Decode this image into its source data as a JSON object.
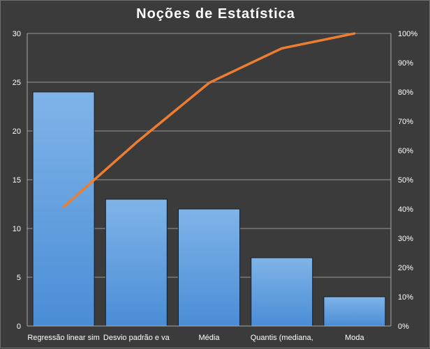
{
  "chart_data": {
    "type": "bar",
    "title": "Noções de Estatística",
    "categories": [
      "Regressão linear sim",
      "Desvio padrão e va",
      "Média",
      "Quantis (mediana,",
      "Moda"
    ],
    "series": [
      {
        "type": "bar",
        "values": [
          24,
          13,
          12,
          7,
          3
        ],
        "axis": "left"
      },
      {
        "type": "line",
        "values": [
          40.7,
          62.7,
          83.1,
          94.9,
          100.0
        ],
        "axis": "right",
        "unit": "%"
      }
    ],
    "ylim": [
      0,
      30
    ],
    "y_ticks": [
      "0",
      "5",
      "10",
      "15",
      "20",
      "25",
      "30"
    ],
    "y2lim": [
      0,
      100
    ],
    "y2_ticks": [
      "0%",
      "10%",
      "20%",
      "30%",
      "40%",
      "50%",
      "60%",
      "70%",
      "80%",
      "90%",
      "100%"
    ],
    "grid": true,
    "colors": {
      "bar": "#5a9be0",
      "bar_light": "#7fb4e8",
      "line": "#ed7d31",
      "grid": "#9a9a9a",
      "background": "#3b3b3b"
    }
  }
}
